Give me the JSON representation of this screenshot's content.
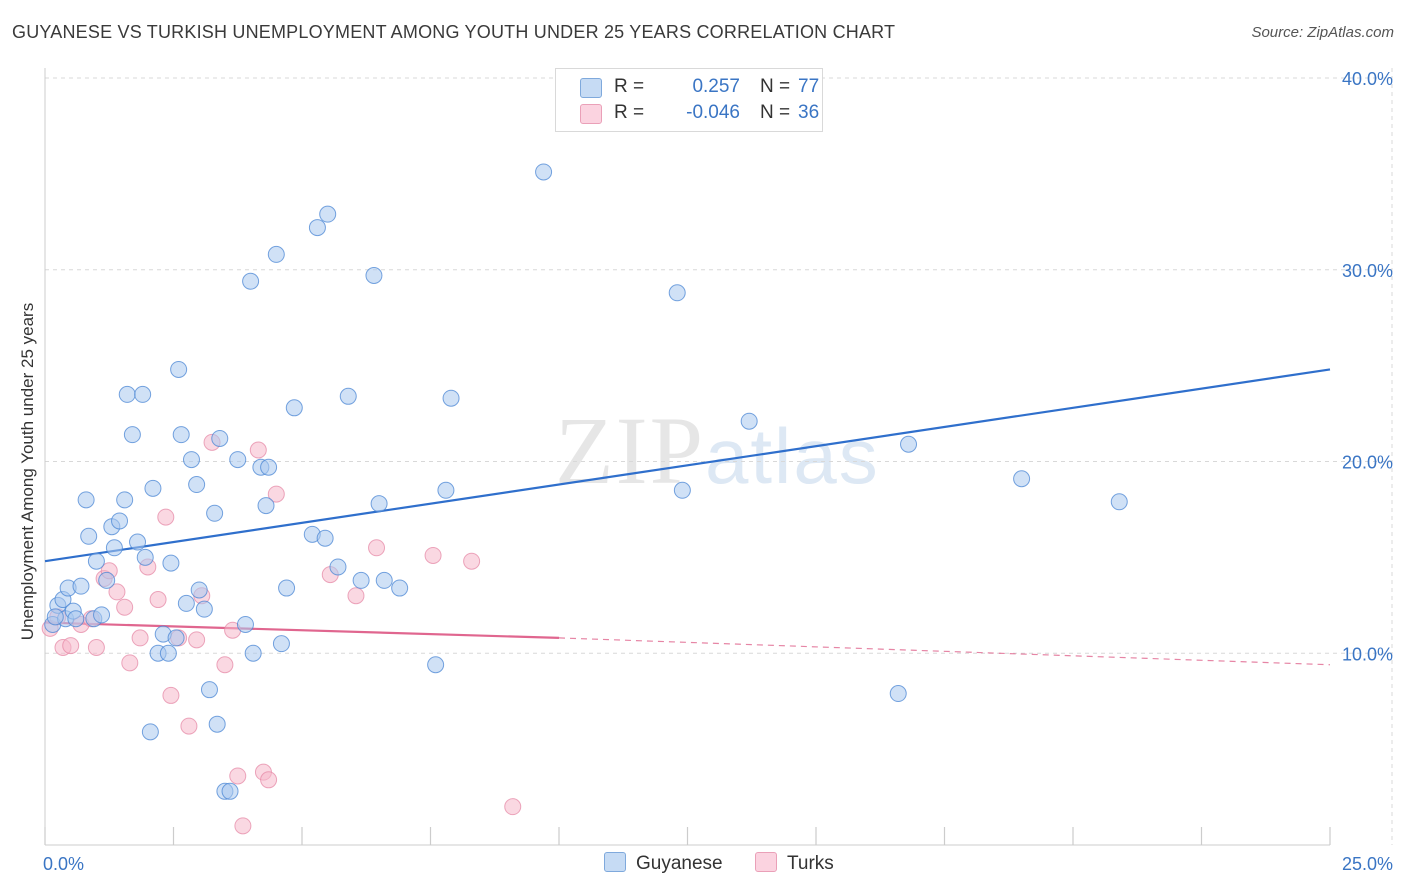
{
  "title": "GUYANESE VS TURKISH UNEMPLOYMENT AMONG YOUTH UNDER 25 YEARS CORRELATION CHART",
  "source": "Source: ZipAtlas.com",
  "watermark": {
    "zip": "ZIP",
    "atlas": "atlas"
  },
  "legend": {
    "rows": [
      {
        "r_label": "R =",
        "r_value": "0.257",
        "n_label": "N =",
        "n_value": "77",
        "color": "#a9c8ef"
      },
      {
        "r_label": "R =",
        "r_value": "-0.046",
        "n_label": "N =",
        "n_value": "36",
        "color": "#f6b8cb"
      }
    ]
  },
  "bottom_legend": [
    {
      "label": "Guyanese",
      "color": "#a9c8ef"
    },
    {
      "label": "Turks",
      "color": "#f6b8cb"
    }
  ],
  "chart_data": {
    "type": "scatter",
    "title": "GUYANESE VS TURKISH UNEMPLOYMENT AMONG YOUTH UNDER 25 YEARS CORRELATION CHART",
    "xlabel": "",
    "ylabel": "Unemployment Among Youth under 25 years",
    "xlim": [
      0,
      25
    ],
    "ylim": [
      0,
      40
    ],
    "x_tick_labels": [
      "0.0%",
      "25.0%"
    ],
    "y_tick_labels": [
      "10.0%",
      "20.0%",
      "30.0%",
      "40.0%"
    ],
    "y_ticks": [
      10,
      20,
      30,
      40
    ],
    "grid": true,
    "series": [
      {
        "name": "Guyanese",
        "color": "#4a86d4",
        "fill": "#a9c8ef",
        "trend": {
          "x0": 0,
          "y0": 14.8,
          "x1": 25,
          "y1": 24.8,
          "color": "#2f6fcc"
        },
        "points": [
          [
            0.15,
            11.5
          ],
          [
            0.25,
            12.5
          ],
          [
            0.35,
            12.8
          ],
          [
            0.4,
            11.8
          ],
          [
            0.45,
            13.4
          ],
          [
            0.55,
            12.2
          ],
          [
            0.6,
            11.8
          ],
          [
            0.7,
            13.5
          ],
          [
            0.8,
            18.0
          ],
          [
            0.85,
            16.1
          ],
          [
            0.95,
            11.8
          ],
          [
            1.0,
            14.8
          ],
          [
            1.1,
            12.0
          ],
          [
            1.2,
            13.8
          ],
          [
            1.3,
            16.6
          ],
          [
            1.35,
            15.5
          ],
          [
            1.45,
            16.9
          ],
          [
            1.55,
            18.0
          ],
          [
            1.6,
            23.5
          ],
          [
            1.7,
            21.4
          ],
          [
            1.8,
            15.8
          ],
          [
            1.9,
            23.5
          ],
          [
            1.95,
            15.0
          ],
          [
            2.05,
            5.9
          ],
          [
            2.1,
            18.6
          ],
          [
            2.2,
            10.0
          ],
          [
            2.3,
            11.0
          ],
          [
            2.4,
            10.0
          ],
          [
            2.45,
            14.7
          ],
          [
            2.55,
            10.8
          ],
          [
            2.6,
            24.8
          ],
          [
            2.65,
            21.4
          ],
          [
            2.75,
            12.6
          ],
          [
            2.85,
            20.1
          ],
          [
            2.95,
            18.8
          ],
          [
            3.0,
            13.3
          ],
          [
            3.1,
            12.3
          ],
          [
            3.2,
            8.1
          ],
          [
            3.3,
            17.3
          ],
          [
            3.35,
            6.3
          ],
          [
            3.4,
            21.2
          ],
          [
            3.5,
            2.8
          ],
          [
            3.6,
            2.8
          ],
          [
            3.75,
            20.1
          ],
          [
            3.9,
            11.5
          ],
          [
            4.0,
            29.4
          ],
          [
            4.05,
            10.0
          ],
          [
            4.2,
            19.7
          ],
          [
            4.3,
            17.7
          ],
          [
            4.35,
            19.7
          ],
          [
            4.5,
            30.8
          ],
          [
            4.6,
            10.5
          ],
          [
            4.7,
            13.4
          ],
          [
            4.85,
            22.8
          ],
          [
            5.2,
            16.2
          ],
          [
            5.3,
            32.2
          ],
          [
            5.45,
            16.0
          ],
          [
            5.5,
            32.9
          ],
          [
            5.7,
            14.5
          ],
          [
            5.9,
            23.4
          ],
          [
            6.15,
            13.8
          ],
          [
            6.4,
            29.7
          ],
          [
            6.5,
            17.8
          ],
          [
            6.6,
            13.8
          ],
          [
            6.9,
            13.4
          ],
          [
            7.6,
            9.4
          ],
          [
            7.8,
            18.5
          ],
          [
            7.9,
            23.3
          ],
          [
            9.7,
            35.1
          ],
          [
            12.3,
            28.8
          ],
          [
            12.4,
            18.5
          ],
          [
            13.7,
            22.1
          ],
          [
            16.6,
            7.9
          ],
          [
            16.8,
            20.9
          ],
          [
            19.0,
            19.1
          ],
          [
            20.9,
            17.9
          ],
          [
            0.2,
            11.9
          ]
        ]
      },
      {
        "name": "Turks",
        "color": "#e58aa7",
        "fill": "#f6b8cb",
        "trend": {
          "x0": 0,
          "y0": 11.6,
          "x1": 10,
          "y1": 10.8,
          "x2": 25,
          "y2": 9.4,
          "color": "#e0668f"
        },
        "points": [
          [
            0.1,
            11.3
          ],
          [
            0.25,
            11.9
          ],
          [
            0.35,
            10.3
          ],
          [
            0.5,
            10.4
          ],
          [
            0.7,
            11.5
          ],
          [
            0.9,
            11.8
          ],
          [
            1.0,
            10.3
          ],
          [
            1.15,
            13.9
          ],
          [
            1.25,
            14.3
          ],
          [
            1.4,
            13.2
          ],
          [
            1.55,
            12.4
          ],
          [
            1.65,
            9.5
          ],
          [
            1.85,
            10.8
          ],
          [
            2.0,
            14.5
          ],
          [
            2.2,
            12.8
          ],
          [
            2.35,
            17.1
          ],
          [
            2.45,
            7.8
          ],
          [
            2.6,
            10.8
          ],
          [
            2.8,
            6.2
          ],
          [
            2.95,
            10.7
          ],
          [
            3.05,
            13.0
          ],
          [
            3.25,
            21.0
          ],
          [
            3.5,
            9.4
          ],
          [
            3.65,
            11.2
          ],
          [
            3.75,
            3.6
          ],
          [
            3.85,
            1.0
          ],
          [
            4.15,
            20.6
          ],
          [
            4.25,
            3.8
          ],
          [
            4.35,
            3.4
          ],
          [
            4.5,
            18.3
          ],
          [
            5.55,
            14.1
          ],
          [
            6.05,
            13.0
          ],
          [
            6.45,
            15.5
          ],
          [
            7.55,
            15.1
          ],
          [
            8.3,
            14.8
          ],
          [
            9.1,
            2.0
          ]
        ]
      }
    ]
  }
}
